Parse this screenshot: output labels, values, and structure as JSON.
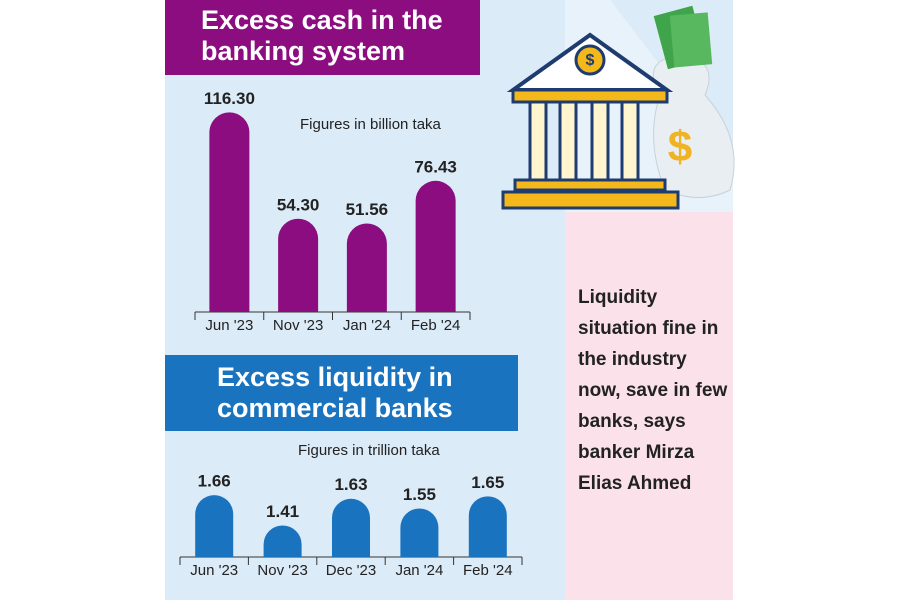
{
  "chart_data": [
    {
      "type": "bar",
      "title": "Excess cash in the banking system",
      "subtitle": "Figures in billion taka",
      "categories": [
        "Jun '23",
        "Nov '23",
        "Jan '24",
        "Feb '24"
      ],
      "values": [
        116.3,
        54.3,
        51.56,
        76.43
      ],
      "value_labels": [
        "116.30",
        "54.30",
        "51.56",
        "76.43"
      ],
      "color": "#8c0d80",
      "ylim": [
        0,
        120
      ]
    },
    {
      "type": "bar",
      "title": "Excess liquidity in commercial banks",
      "subtitle": "Figures in trillion taka",
      "categories": [
        "Jun '23",
        "Nov '23",
        "Dec '23",
        "Jan '24",
        "Feb '24"
      ],
      "values": [
        1.66,
        1.41,
        1.63,
        1.55,
        1.65
      ],
      "color": "#1a73bf",
      "ylim": [
        1.15,
        1.9
      ]
    }
  ],
  "caption": "Liquidity situation fine in the industry now, save in few banks, says banker Mirza Elias Ahmed"
}
